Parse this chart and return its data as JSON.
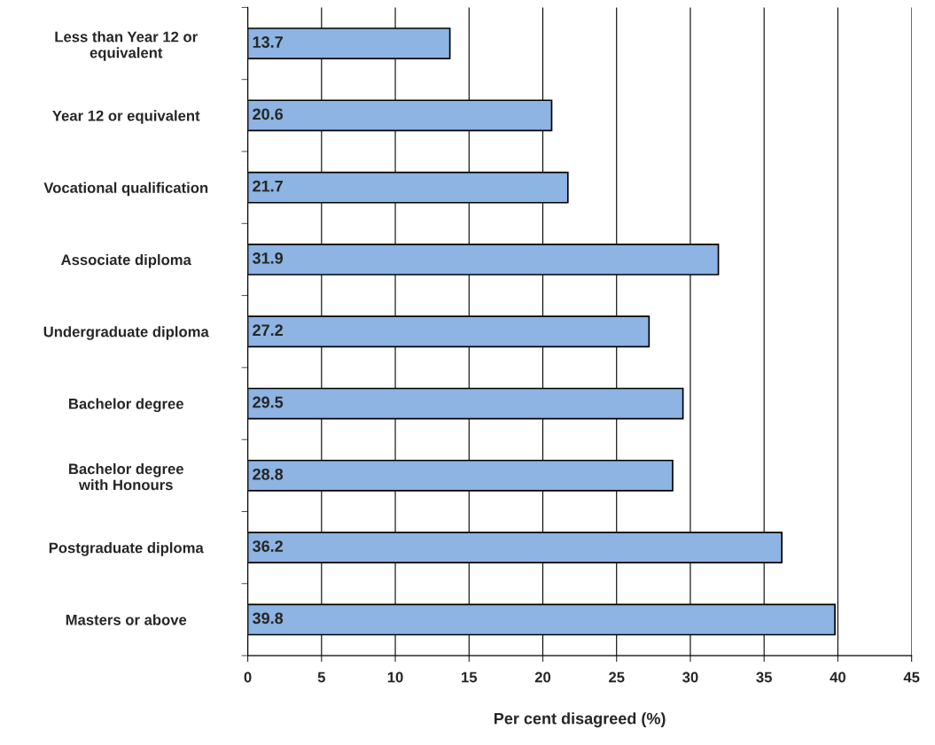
{
  "chart_data": {
    "type": "bar",
    "orientation": "horizontal",
    "xlabel": "Per cent disagreed (%)",
    "categories": [
      "Less than Year 12 or\nequivalent",
      "Year 12 or equivalent",
      "Vocational qualification",
      "Associate diploma",
      "Undergraduate diploma",
      "Bachelor degree",
      "Bachelor degree\nwith Honours",
      "Postgraduate diploma",
      "Masters or above"
    ],
    "values": [
      13.7,
      20.6,
      21.7,
      31.9,
      27.2,
      29.5,
      28.8,
      36.2,
      39.8
    ],
    "color": "#8db4e2",
    "data_labels": true,
    "grid": "x",
    "xlim": [
      0,
      45
    ],
    "xticks": [
      0,
      5,
      10,
      15,
      20,
      25,
      30,
      35,
      40,
      45
    ]
  }
}
